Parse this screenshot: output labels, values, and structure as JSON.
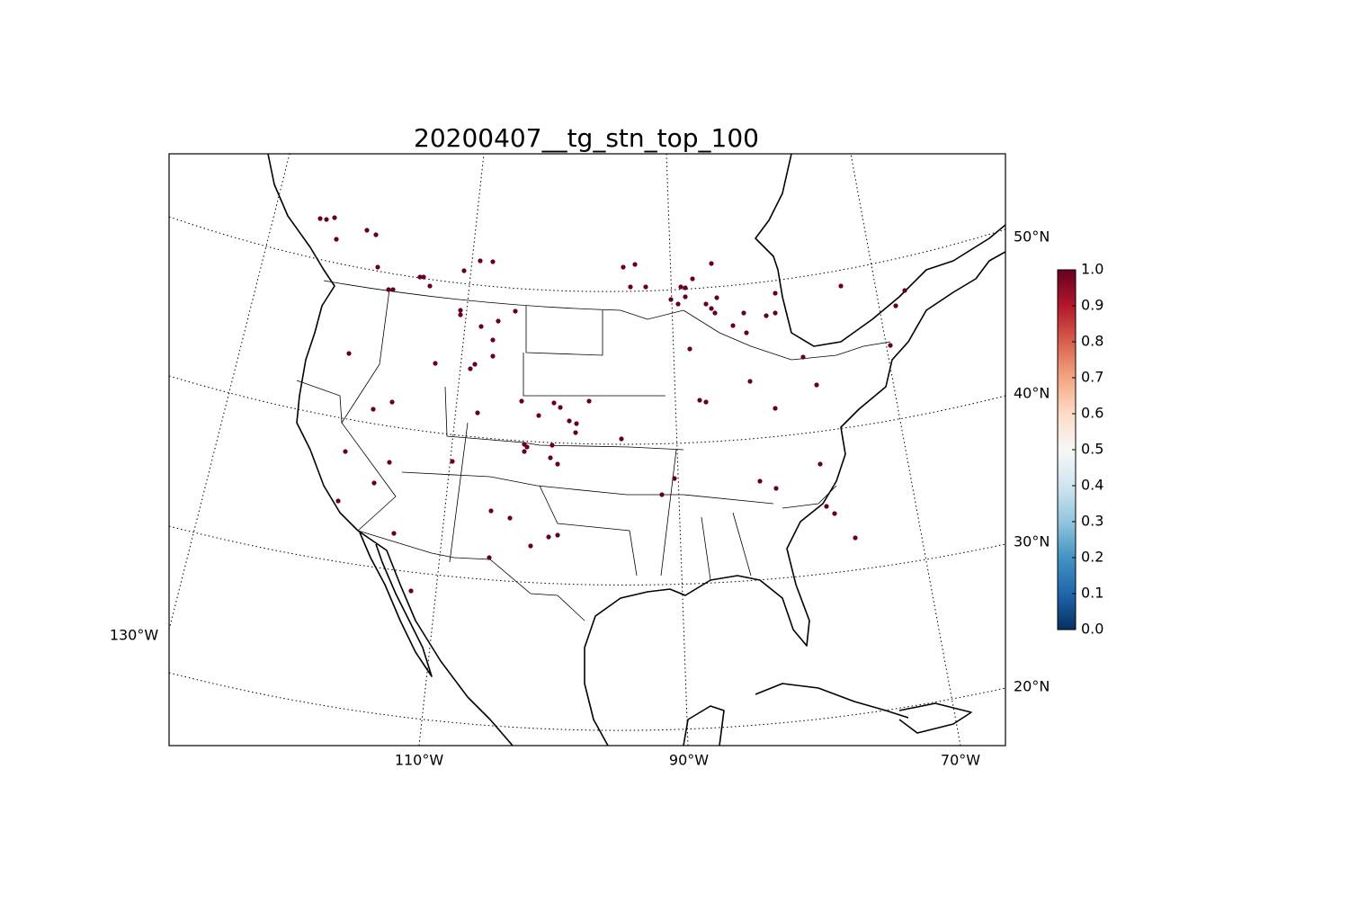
{
  "title": "20200407__tg_stn_top_100",
  "map": {
    "lon_labels": [
      "130°W",
      "110°W",
      "90°W",
      "70°W"
    ],
    "lat_labels": [
      "50°N",
      "40°N",
      "30°N",
      "20°N"
    ],
    "marker_color": "#67001f"
  },
  "colorbar": {
    "colormap": "RdBu_r",
    "lim": [
      0,
      1
    ],
    "ticks": [
      {
        "value": 0,
        "label": "0.0"
      },
      {
        "value": 0.1,
        "label": "0.1"
      },
      {
        "value": 0.2,
        "label": "0.2"
      },
      {
        "value": 0.3,
        "label": "0.3"
      },
      {
        "value": 0.4,
        "label": "0.4"
      },
      {
        "value": 0.5,
        "label": "0.5"
      },
      {
        "value": 0.6,
        "label": "0.6"
      },
      {
        "value": 0.7,
        "label": "0.7"
      },
      {
        "value": 0.8,
        "label": "0.8"
      },
      {
        "value": 0.9,
        "label": "0.9"
      },
      {
        "value": 1,
        "label": "1.0"
      }
    ]
  }
}
